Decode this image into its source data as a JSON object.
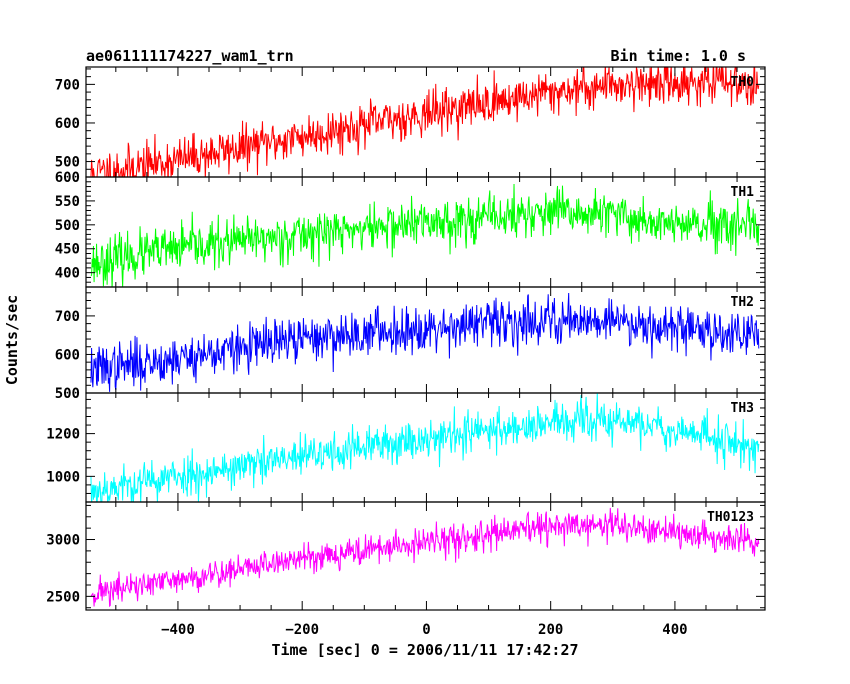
{
  "header": {
    "title": "ae061111174227_wam1_trn",
    "bin_time": "Bin time: 1.0 s"
  },
  "axes": {
    "xlabel": "Time [sec] 0 = 2006/11/11 17:42:27",
    "ylabel": "Counts/sec"
  },
  "chart_data": {
    "type": "line",
    "x_range": [
      -548,
      545
    ],
    "x_ticks": [
      -400,
      -200,
      0,
      200,
      400
    ],
    "x_tick_labels": [
      "−400",
      "−200",
      "0",
      "200",
      "400"
    ],
    "data_x_range": [
      -540,
      535
    ],
    "panels": [
      {
        "name": "TH0",
        "color": "#ff0000",
        "ylim": [
          460,
          745
        ],
        "y_ticks": [
          500,
          600,
          700
        ],
        "y_tick_labels": [
          "500",
          "600",
          "700"
        ],
        "top_label": "",
        "trend": {
          "x": [
            -540,
            -400,
            -200,
            0,
            200,
            300,
            400,
            535
          ],
          "y": [
            468,
            505,
            565,
            625,
            680,
            700,
            705,
            705
          ]
        },
        "noise": 28,
        "seed": 11
      },
      {
        "name": "TH1",
        "color": "#00ff00",
        "ylim": [
          370,
          600
        ],
        "y_ticks": [
          400,
          450,
          500,
          550
        ],
        "y_tick_labels": [
          "400",
          "450",
          "500",
          "550"
        ],
        "top_label": "600",
        "trend": {
          "x": [
            -540,
            -400,
            -200,
            0,
            200,
            300,
            400,
            535
          ],
          "y": [
            420,
            450,
            480,
            505,
            525,
            520,
            500,
            490
          ]
        },
        "noise": 24,
        "seed": 23
      },
      {
        "name": "TH2",
        "color": "#0000ff",
        "ylim": [
          500,
          775
        ],
        "y_ticks": [
          600,
          700
        ],
        "y_tick_labels": [
          "600",
          "700"
        ],
        "top_label": "",
        "trend": {
          "x": [
            -540,
            -400,
            -200,
            0,
            200,
            300,
            400,
            535
          ],
          "y": [
            560,
            590,
            640,
            670,
            690,
            690,
            670,
            650
          ]
        },
        "noise": 30,
        "seed": 37
      },
      {
        "name": "TH3",
        "color": "#00ffff",
        "ylim": [
          880,
          1390
        ],
        "y_ticks": [
          1000,
          1200
        ],
        "y_tick_labels": [
          "1000",
          "1200"
        ],
        "top_label": "500",
        "trend": {
          "x": [
            -540,
            -400,
            -200,
            0,
            200,
            300,
            400,
            535
          ],
          "y": [
            930,
            1000,
            1090,
            1180,
            1250,
            1260,
            1220,
            1130
          ]
        },
        "noise": 48,
        "seed": 53
      },
      {
        "name": "TH0123",
        "color": "#ff00ff",
        "ylim": [
          2380,
          3330
        ],
        "y_ticks": [
          2500,
          3000
        ],
        "y_tick_labels": [
          "2500",
          "3000"
        ],
        "top_label": "",
        "trend": {
          "x": [
            -540,
            -400,
            -200,
            0,
            200,
            300,
            400,
            535
          ],
          "y": [
            2530,
            2640,
            2840,
            2970,
            3110,
            3130,
            3050,
            2980
          ]
        },
        "noise": 65,
        "seed": 71
      }
    ]
  }
}
